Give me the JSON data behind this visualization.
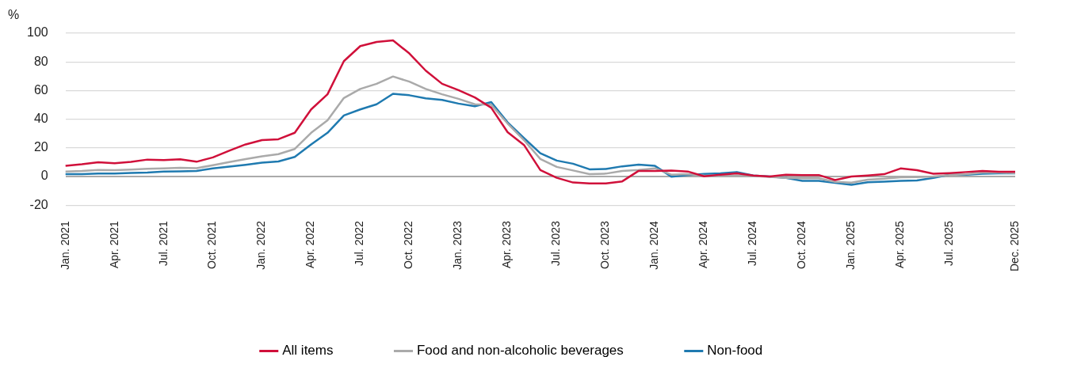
{
  "chart_data": {
    "type": "line",
    "ylabel": "%",
    "categories": [
      "Jan. 2021",
      null,
      null,
      "Apr. 2021",
      null,
      null,
      "Jul. 2021",
      null,
      null,
      "Oct. 2021",
      null,
      null,
      "Jan. 2022",
      null,
      null,
      "Apr. 2022",
      null,
      null,
      "Jul. 2022",
      null,
      null,
      "Oct. 2022",
      null,
      null,
      "Jan. 2023",
      null,
      null,
      "Apr. 2023",
      null,
      null,
      "Jul. 2023",
      null,
      null,
      "Oct. 2023",
      null,
      null,
      "Jan. 2024",
      null,
      null,
      "Apr. 2024",
      null,
      null,
      "Jul. 2024",
      null,
      null,
      "Oct. 2024",
      null,
      null,
      "Jan. 2025",
      null,
      null,
      "Apr. 2025",
      null,
      null,
      "Jul. 2025",
      null,
      null,
      null,
      "Dec. 2025"
    ],
    "series": [
      {
        "name": "All items",
        "color": "#d0103a",
        "values": [
          7.4,
          8.5,
          9.9,
          9.2,
          10.2,
          11.8,
          11.4,
          12,
          10.3,
          13.3,
          18,
          22.4,
          25.4,
          26,
          30.5,
          46.8,
          57.4,
          80.5,
          91,
          93.9,
          95,
          85.9,
          73.9,
          64.7,
          60.3,
          55.2,
          48,
          30.9,
          22,
          4.5,
          -0.9,
          -4.2,
          -4.8,
          -4.8,
          -3.4,
          3.9,
          3.9,
          4.2,
          3.5,
          0.1,
          1.3,
          2.2,
          0.7,
          0,
          1.2,
          1,
          1,
          -2.5,
          0,
          0.7,
          1.6,
          5.6,
          4.4,
          1.9,
          2.4,
          3.1,
          3.9,
          3.3,
          3.3
        ]
      },
      {
        "name": "Food and non-alcoholic beverages",
        "color": "#aaaaaa",
        "values": [
          3.5,
          3.8,
          4.5,
          4.4,
          4.8,
          5.4,
          5.7,
          6,
          5.8,
          7.9,
          10.1,
          12.2,
          14.1,
          15.6,
          19.2,
          30.5,
          39.2,
          54.8,
          61.1,
          64.7,
          69.8,
          66.2,
          61.1,
          57.4,
          54.2,
          50.4,
          50.1,
          37,
          25.4,
          12.2,
          6.7,
          4.2,
          1.6,
          2,
          3.9,
          4.5,
          5.7,
          1.3,
          1.6,
          0.7,
          0.4,
          0.7,
          0.4,
          -0.3,
          -1,
          -1.3,
          -1.3,
          -3.7,
          -4.3,
          -2.2,
          -1.5,
          -0.6,
          -0.4,
          0,
          0.9,
          1.6,
          2.7,
          2.7,
          2.4
        ]
      },
      {
        "name": "Non-food",
        "color": "#1f7ab0",
        "values": [
          1.6,
          1.6,
          2,
          2,
          2.5,
          2.8,
          3.4,
          3.6,
          3.9,
          5.7,
          6.9,
          8.2,
          9.6,
          10.5,
          13.7,
          22.4,
          30.5,
          42.6,
          46.8,
          50.4,
          57.7,
          56.7,
          54.5,
          53.4,
          50.9,
          49,
          51.9,
          37.8,
          26.8,
          16.2,
          11.1,
          8.9,
          5,
          5.2,
          7.1,
          8.3,
          7.4,
          -0.1,
          0.9,
          1.8,
          2.2,
          3.1,
          0.7,
          0,
          -1,
          -3,
          -3,
          -4.4,
          -5.8,
          -4,
          -3.6,
          -3.1,
          -2.8,
          -1,
          1.2,
          1.2,
          1.9,
          2.2,
          2.2
        ]
      }
    ],
    "ylim": [
      -20,
      100
    ],
    "yticks": [
      -20,
      0,
      20,
      40,
      60,
      80,
      100
    ],
    "grid": "y",
    "legend": "bottom",
    "marker": "none",
    "line_style": "solid"
  }
}
